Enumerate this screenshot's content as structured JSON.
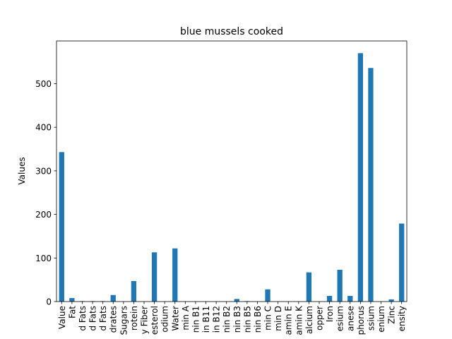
{
  "colors": {
    "bar": "#1f77b4",
    "axis": "#000000",
    "background": "#ffffff"
  },
  "chart_data": {
    "type": "bar",
    "title": "blue mussels cooked",
    "xlabel": "",
    "ylabel": "Values",
    "ylim": [
      0,
      598
    ],
    "grid": false,
    "legend": "none",
    "yticks": [
      0,
      100,
      200,
      300,
      400,
      500
    ],
    "categories": [
      "Value",
      "Fat",
      "d Fats",
      "d Fats",
      "d Fats",
      "drates",
      "Sugars",
      "rotein",
      "y Fiber",
      "esterol",
      "odium",
      "Water",
      "min A",
      "nin B1",
      "in B11",
      "in B12",
      "nin B2",
      "nin B3",
      "nin B5",
      "nin B6",
      "min C",
      "min D",
      "amin E",
      "amin K",
      "alcium",
      "opper",
      "Iron",
      "esium",
      "anese",
      "phorus",
      "ssium",
      "enium",
      "Zinc",
      "ensity"
    ],
    "values": [
      343,
      8,
      1,
      1,
      1,
      15,
      0,
      47,
      0,
      113,
      0,
      122,
      0,
      0,
      0,
      0,
      0,
      6,
      1,
      0,
      28,
      0,
      0,
      0,
      67,
      0,
      13,
      73,
      13,
      570,
      536,
      0,
      5,
      179
    ]
  }
}
